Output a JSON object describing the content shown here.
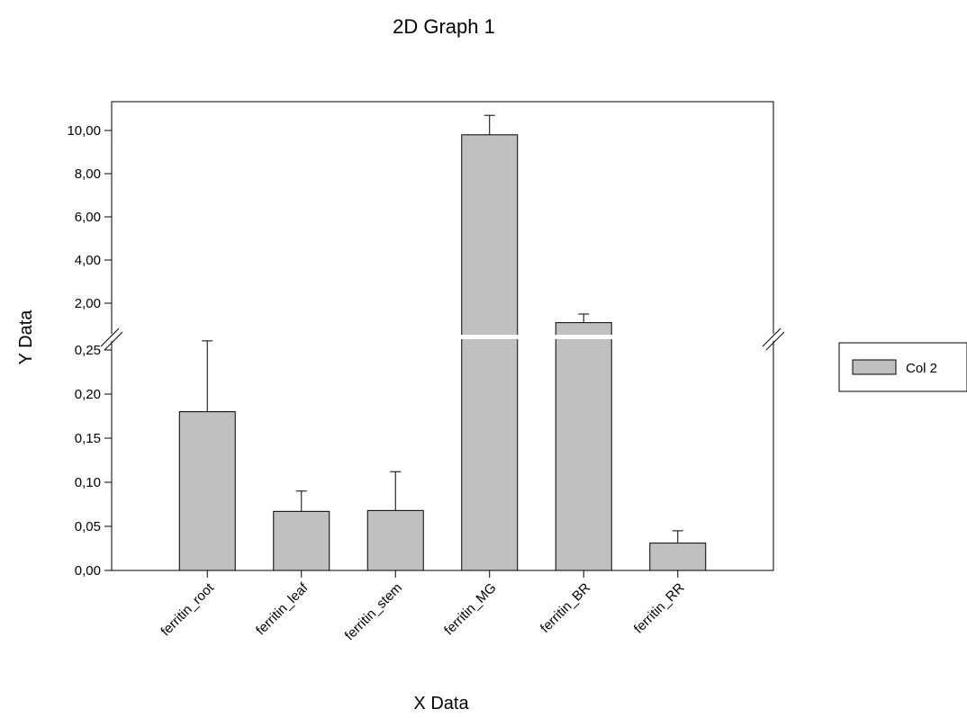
{
  "chart_data": {
    "type": "bar",
    "title": "2D Graph 1",
    "xlabel": "X Data",
    "ylabel": "Y Data",
    "categories": [
      "ferritin_root",
      "ferritin_leaf",
      "ferritin_stem",
      "ferritin_MG",
      "ferritin_BR",
      "ferritin_RR"
    ],
    "series": [
      {
        "name": "Col 2",
        "values": [
          0.18,
          0.067,
          0.068,
          9.8,
          1.1,
          0.031
        ],
        "errors": [
          0.076,
          0.023,
          0.044,
          0.9,
          0.4,
          0.014
        ]
      }
    ],
    "axis_break": {
      "lower_range": [
        0,
        0.25
      ],
      "upper_range": [
        0.25,
        10.5
      ]
    },
    "lower_ticks": [
      "0,00",
      "0,05",
      "0,10",
      "0,15",
      "0,20",
      "0,25"
    ],
    "upper_ticks": [
      "2,00",
      "4,00",
      "6,00",
      "8,00",
      "10,00"
    ],
    "lower_tick_values": [
      0,
      0.05,
      0.1,
      0.15,
      0.2,
      0.25
    ],
    "upper_tick_values": [
      2,
      4,
      6,
      8,
      10
    ],
    "bar_color": "#c0c0c0",
    "legend_placement": "right",
    "grid": false
  }
}
